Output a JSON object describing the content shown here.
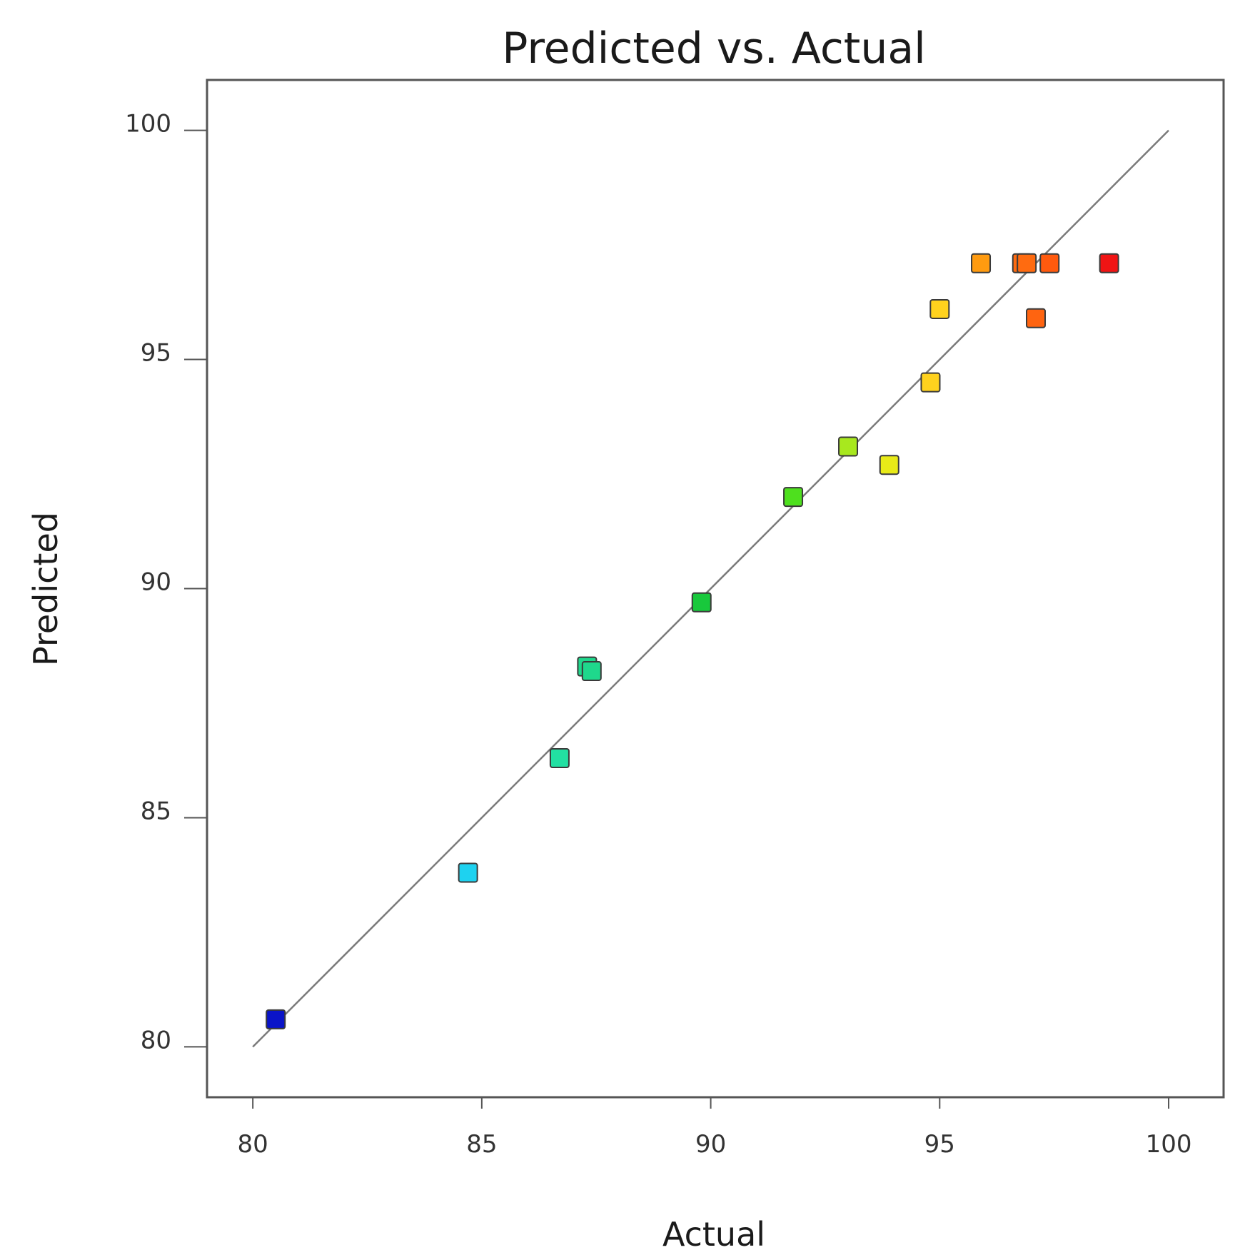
{
  "chart_data": {
    "type": "scatter",
    "title": "Predicted vs. Actual",
    "xlabel": "Actual",
    "ylabel": "Predicted",
    "xlim": [
      79,
      101.2
    ],
    "ylim": [
      78.9,
      101.1
    ],
    "xticks": [
      80,
      85,
      90,
      95,
      100
    ],
    "yticks": [
      80,
      85,
      90,
      95,
      100
    ],
    "reference_line": {
      "x": [
        80,
        100
      ],
      "y": [
        80,
        100
      ],
      "color": "#7a7a7a"
    },
    "grid": false,
    "legend": "none",
    "points": [
      {
        "x": 80.5,
        "y": 80.6,
        "color": "#0a14c8"
      },
      {
        "x": 84.7,
        "y": 83.8,
        "color": "#1ed2f0"
      },
      {
        "x": 86.7,
        "y": 86.3,
        "color": "#22e0a2"
      },
      {
        "x": 87.3,
        "y": 88.3,
        "color": "#1fd88c"
      },
      {
        "x": 87.4,
        "y": 88.2,
        "color": "#1fd88c"
      },
      {
        "x": 89.8,
        "y": 89.7,
        "color": "#18c83c"
      },
      {
        "x": 91.8,
        "y": 92.0,
        "color": "#4ee01e"
      },
      {
        "x": 93.0,
        "y": 93.1,
        "color": "#a8e81e"
      },
      {
        "x": 93.9,
        "y": 92.7,
        "color": "#e8ea18"
      },
      {
        "x": 94.8,
        "y": 94.5,
        "color": "#ffd21e"
      },
      {
        "x": 95.0,
        "y": 96.1,
        "color": "#ffd21e"
      },
      {
        "x": 95.9,
        "y": 97.1,
        "color": "#ff9b10"
      },
      {
        "x": 96.8,
        "y": 97.1,
        "color": "#ff6b10"
      },
      {
        "x": 96.9,
        "y": 97.1,
        "color": "#ff6b10"
      },
      {
        "x": 97.4,
        "y": 97.1,
        "color": "#ff5a0e"
      },
      {
        "x": 97.1,
        "y": 95.9,
        "color": "#ff6410"
      },
      {
        "x": 98.7,
        "y": 97.1,
        "color": "#f01414"
      }
    ]
  }
}
